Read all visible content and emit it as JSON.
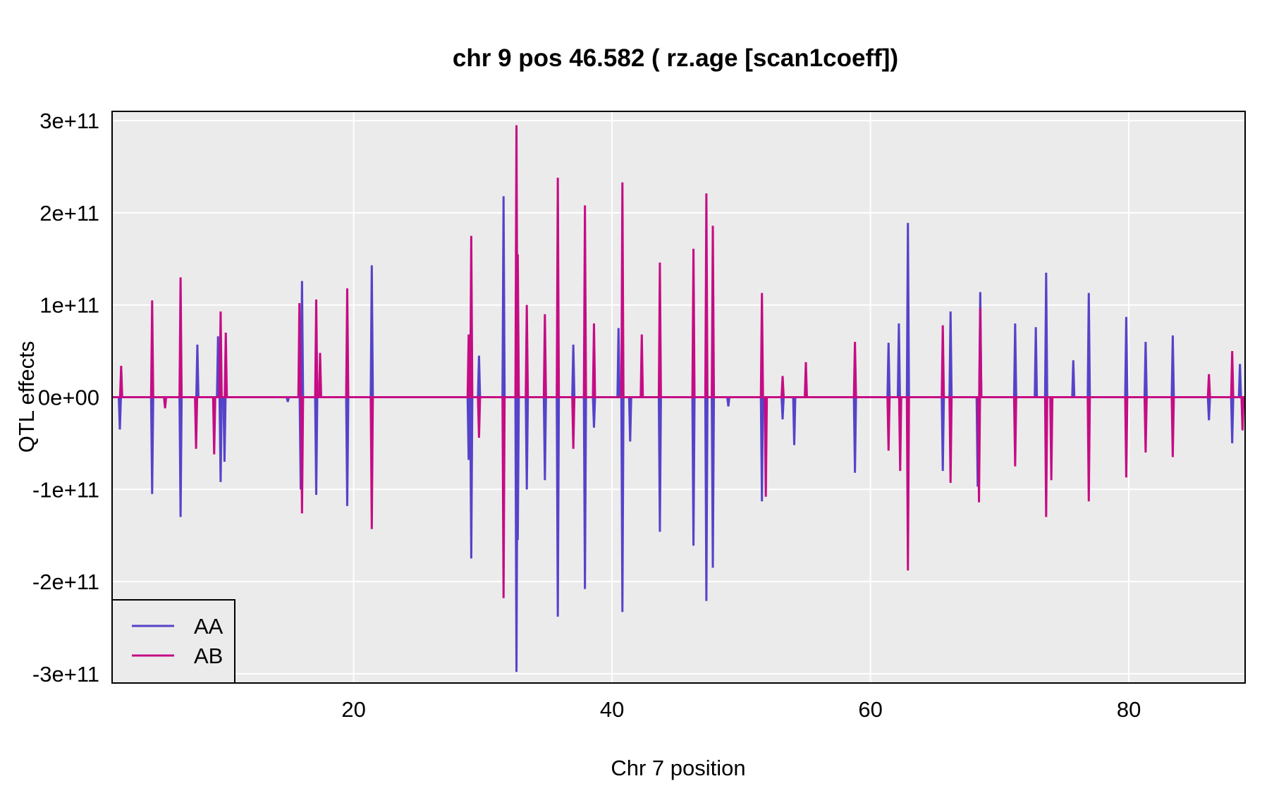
{
  "chart_data": {
    "type": "line",
    "title": "chr 9 pos 46.582 ( rz.age  [scan1coeff])",
    "xlabel": "Chr 7 position",
    "ylabel": "QTL effects",
    "xlim": [
      1.3,
      89.0
    ],
    "ylim": [
      -310000000000.0,
      310000000000.0
    ],
    "x_ticks": [
      20,
      40,
      60,
      80
    ],
    "x_tick_labels": [
      "20",
      "40",
      "60",
      "80"
    ],
    "y_ticks": [
      300000000000.0,
      200000000000.0,
      100000000000.0,
      0,
      -100000000000.0,
      -200000000000.0,
      -300000000000.0
    ],
    "y_tick_labels": [
      "3e+11",
      "2e+11",
      "1e+11",
      "0e+00",
      "-1e+11",
      "-2e+11",
      "-3e+11"
    ],
    "grid": true,
    "background": "#EBEBEB",
    "legend_position": "bottom-left",
    "series": [
      {
        "name": "AA",
        "color": "#5543C9",
        "spikes": [
          [
            1.9,
            -35000000000.0
          ],
          [
            4.4,
            -105000000000.0
          ],
          [
            6.6,
            -130000000000.0
          ],
          [
            7.9,
            57000000000.0
          ],
          [
            9.5,
            66000000000.0
          ],
          [
            9.7,
            -92000000000.0
          ],
          [
            10.0,
            -70000000000.0
          ],
          [
            14.9,
            -5000000000.0
          ],
          [
            16.0,
            126000000000.0
          ],
          [
            15.9,
            -100000000000.0
          ],
          [
            17.1,
            -106000000000.0
          ],
          [
            19.5,
            -118000000000.0
          ],
          [
            21.4,
            143000000000.0
          ],
          [
            28.9,
            -68000000000.0
          ],
          [
            29.1,
            -175000000000.0
          ],
          [
            29.7,
            45000000000.0
          ],
          [
            31.6,
            218000000000.0
          ],
          [
            32.6,
            -298000000000.0
          ],
          [
            32.7,
            -155000000000.0
          ],
          [
            33.4,
            -100000000000.0
          ],
          [
            34.8,
            -90000000000.0
          ],
          [
            35.8,
            -238000000000.0
          ],
          [
            37.0,
            57000000000.0
          ],
          [
            37.9,
            -208000000000.0
          ],
          [
            38.6,
            -33000000000.0
          ],
          [
            40.5,
            75000000000.0
          ],
          [
            40.8,
            -233000000000.0
          ],
          [
            41.4,
            -48000000000.0
          ],
          [
            43.7,
            -146000000000.0
          ],
          [
            46.3,
            -161000000000.0
          ],
          [
            47.3,
            -221000000000.0
          ],
          [
            47.8,
            -185000000000.0
          ],
          [
            49.0,
            -10000000000.0
          ],
          [
            51.6,
            -113000000000.0
          ],
          [
            53.2,
            -24000000000.0
          ],
          [
            54.1,
            -52000000000.0
          ],
          [
            58.8,
            -82000000000.0
          ],
          [
            61.4,
            59000000000.0
          ],
          [
            62.2,
            80000000000.0
          ],
          [
            62.9,
            189000000000.0
          ],
          [
            65.6,
            -80000000000.0
          ],
          [
            66.2,
            93000000000.0
          ],
          [
            68.5,
            114000000000.0
          ],
          [
            68.3,
            -97000000000.0
          ],
          [
            71.2,
            80000000000.0
          ],
          [
            72.8,
            76000000000.0
          ],
          [
            73.6,
            135000000000.0
          ],
          [
            75.7,
            40000000000.0
          ],
          [
            76.9,
            113000000000.0
          ],
          [
            79.8,
            87000000000.0
          ],
          [
            81.3,
            60000000000.0
          ],
          [
            83.4,
            67000000000.0
          ],
          [
            86.2,
            -25000000000.0
          ],
          [
            88.0,
            -50000000000.0
          ],
          [
            88.6,
            36000000000.0
          ]
        ]
      },
      {
        "name": "AB",
        "color": "#C50C84",
        "spikes": [
          [
            2.0,
            34000000000.0
          ],
          [
            4.4,
            105000000000.0
          ],
          [
            5.4,
            -12000000000.0
          ],
          [
            6.6,
            130000000000.0
          ],
          [
            7.8,
            -56000000000.0
          ],
          [
            9.2,
            -62000000000.0
          ],
          [
            9.7,
            93000000000.0
          ],
          [
            10.1,
            70000000000.0
          ],
          [
            15.8,
            102000000000.0
          ],
          [
            16.0,
            -126000000000.0
          ],
          [
            17.1,
            106000000000.0
          ],
          [
            17.4,
            48000000000.0
          ],
          [
            19.5,
            118000000000.0
          ],
          [
            21.4,
            -143000000000.0
          ],
          [
            28.9,
            68000000000.0
          ],
          [
            29.1,
            175000000000.0
          ],
          [
            29.7,
            -44000000000.0
          ],
          [
            31.6,
            -218000000000.0
          ],
          [
            32.6,
            295000000000.0
          ],
          [
            32.7,
            155000000000.0
          ],
          [
            33.4,
            100000000000.0
          ],
          [
            34.8,
            90000000000.0
          ],
          [
            35.8,
            238000000000.0
          ],
          [
            37.0,
            -56000000000.0
          ],
          [
            37.9,
            208000000000.0
          ],
          [
            38.6,
            80000000000.0
          ],
          [
            40.8,
            233000000000.0
          ],
          [
            42.3,
            68000000000.0
          ],
          [
            43.7,
            146000000000.0
          ],
          [
            46.3,
            161000000000.0
          ],
          [
            47.3,
            221000000000.0
          ],
          [
            47.8,
            186000000000.0
          ],
          [
            51.6,
            113000000000.0
          ],
          [
            51.9,
            -108000000000.0
          ],
          [
            53.2,
            23000000000.0
          ],
          [
            55.0,
            38000000000.0
          ],
          [
            58.8,
            60000000000.0
          ],
          [
            61.4,
            -58000000000.0
          ],
          [
            62.3,
            -80000000000.0
          ],
          [
            62.9,
            -188000000000.0
          ],
          [
            65.6,
            78000000000.0
          ],
          [
            66.2,
            -93000000000.0
          ],
          [
            68.4,
            -114000000000.0
          ],
          [
            68.5,
            97000000000.0
          ],
          [
            71.2,
            -75000000000.0
          ],
          [
            73.6,
            -130000000000.0
          ],
          [
            74.0,
            -90000000000.0
          ],
          [
            76.9,
            -113000000000.0
          ],
          [
            79.8,
            -87000000000.0
          ],
          [
            81.3,
            -60000000000.0
          ],
          [
            83.4,
            -65000000000.0
          ],
          [
            86.2,
            25000000000.0
          ],
          [
            88.0,
            50000000000.0
          ],
          [
            88.8,
            -36000000000.0
          ]
        ]
      }
    ]
  }
}
